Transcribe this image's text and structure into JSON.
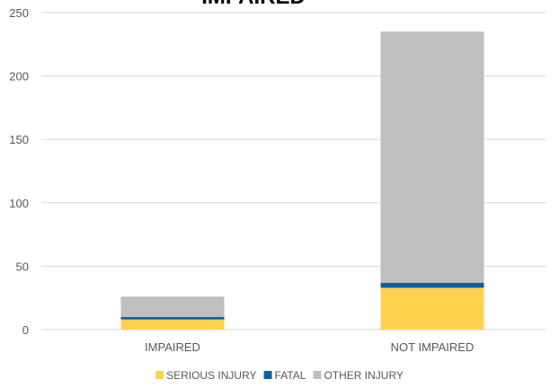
{
  "chart_data": {
    "type": "bar",
    "stacked": true,
    "title": "IMPAIRED",
    "categories": [
      "IMPAIRED",
      "NOT IMPAIRED"
    ],
    "series": [
      {
        "name": "SERIOUS INJURY",
        "color": "#FFD24F",
        "values": [
          8,
          33
        ]
      },
      {
        "name": "FATAL",
        "color": "#0F5F9E",
        "values": [
          2,
          4
        ]
      },
      {
        "name": "OTHER INJURY",
        "color": "#BFBFBF",
        "values": [
          16,
          198
        ]
      }
    ],
    "yticks": [
      0,
      50,
      100,
      150,
      200,
      250
    ],
    "ylim": [
      0,
      250
    ],
    "grid": true,
    "legend": "bottom"
  }
}
